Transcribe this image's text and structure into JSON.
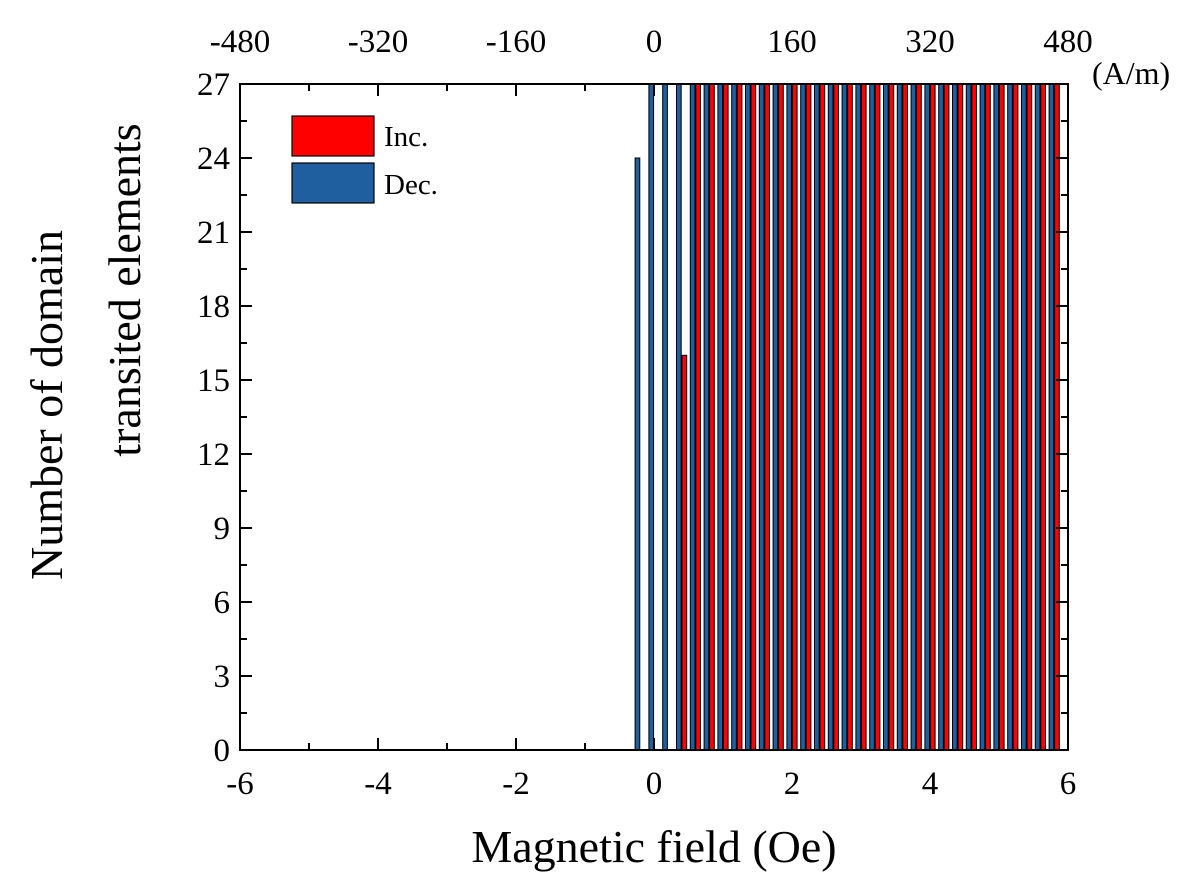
{
  "chart_data": {
    "type": "bar",
    "title": "",
    "xlabel": "Magnetic field (Oe)",
    "ylabel_line1": "Number of domain",
    "ylabel_line2": "transited elements",
    "top_axis_unit": "(A/m)",
    "xlim": [
      -6,
      6
    ],
    "ylim": [
      0,
      27
    ],
    "x_ticks": [
      "-6",
      "-4",
      "-2",
      "0",
      "2",
      "4",
      "6"
    ],
    "y_ticks": [
      "0",
      "3",
      "6",
      "9",
      "12",
      "15",
      "18",
      "21",
      "24",
      "27"
    ],
    "top_ticks": [
      "-480",
      "-320",
      "-160",
      "0",
      "160",
      "320",
      "480"
    ],
    "bar_step_oe": 0.2,
    "series": [
      {
        "name": "Inc.",
        "color": "#ff0000",
        "x": [
          0.4,
          0.6,
          0.8,
          1.0,
          1.2,
          1.4,
          1.6,
          1.8,
          2.0,
          2.2,
          2.4,
          2.6,
          2.8,
          3.0,
          3.2,
          3.4,
          3.6,
          3.8,
          4.0,
          4.2,
          4.4,
          4.6,
          4.8,
          5.0,
          5.2,
          5.4,
          5.6,
          5.8
        ],
        "values": [
          16,
          27,
          27,
          27,
          27,
          27,
          27,
          27,
          27,
          27,
          27,
          27,
          27,
          27,
          27,
          27,
          27,
          27,
          27,
          27,
          27,
          27,
          27,
          27,
          27,
          27,
          27,
          27
        ]
      },
      {
        "name": "Dec.",
        "color": "#1f5fa0",
        "x": [
          -0.2,
          0.0,
          0.2,
          0.4,
          0.6,
          0.8,
          1.0,
          1.2,
          1.4,
          1.6,
          1.8,
          2.0,
          2.2,
          2.4,
          2.6,
          2.8,
          3.0,
          3.2,
          3.4,
          3.6,
          3.8,
          4.0,
          4.2,
          4.4,
          4.6,
          4.8,
          5.0,
          5.2,
          5.4,
          5.6,
          5.8
        ],
        "values": [
          24,
          27,
          27,
          27,
          27,
          27,
          27,
          27,
          27,
          27,
          27,
          27,
          27,
          27,
          27,
          27,
          27,
          27,
          27,
          27,
          27,
          27,
          27,
          27,
          27,
          27,
          27,
          27,
          27,
          27,
          27
        ]
      }
    ],
    "legend": {
      "position": "top-left",
      "entries": [
        "Inc.",
        "Dec."
      ]
    }
  }
}
